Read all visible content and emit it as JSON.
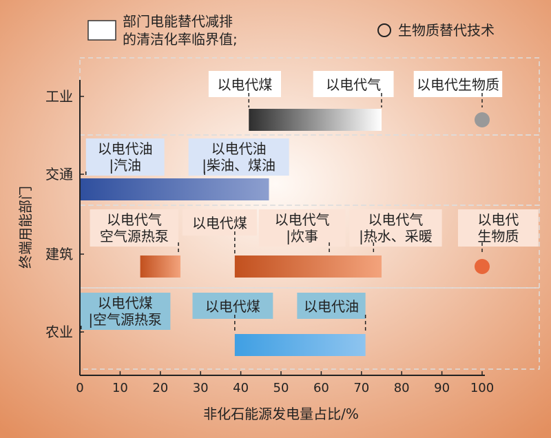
{
  "legend": {
    "box_label_line1": "部门电能替代减排",
    "box_label_line2": "的清洁化率临界值;",
    "circle_label": "生物质替代技术"
  },
  "colors": {
    "bg_center": "#fffaf6",
    "bg_edge": "#e38f5f",
    "industry": "#7a7a7a",
    "industry_light": "#ffffff",
    "industry_dark": "#2e2e2e",
    "transport_dark": "#2f4f9e",
    "transport_light": "#8d9fcf",
    "transport_label_bg": "#d9e4f7",
    "building_dark": "#c2501e",
    "building_light": "#f3a37c",
    "building_label_bg": "#fbe3d6",
    "agri_dark": "#3f9fe3",
    "agri_light": "#8ec4ef",
    "agri_label_bg": "#8ec3d9",
    "white_label_bg": "#ffffff",
    "circle_gray": "#999999",
    "circle_orange": "#e8673a"
  },
  "chart_data": {
    "type": "bar",
    "orientation": "horizontal-range",
    "xlabel": "非化石能源发电量占比/%",
    "ylabel": "终端用能部门",
    "xlim": [
      0,
      100
    ],
    "xticks": [
      0,
      10,
      20,
      30,
      40,
      50,
      60,
      70,
      80,
      90,
      100
    ],
    "categories": [
      "工业",
      "交通",
      "建筑",
      "农业"
    ],
    "bars": [
      {
        "sector": "工业",
        "start": 42,
        "end": 75,
        "color_key": "industry"
      },
      {
        "sector": "交通",
        "start": 0,
        "end": 47,
        "color_key": "transport"
      },
      {
        "sector": "建筑",
        "start": 15,
        "end": 25,
        "color_key": "building"
      },
      {
        "sector": "建筑",
        "start": 38.5,
        "end": 75,
        "color_key": "building"
      },
      {
        "sector": "农业",
        "start": 38.5,
        "end": 71,
        "color_key": "agri"
      }
    ],
    "circles": [
      {
        "sector": "工业",
        "x": 100,
        "color_key": "circle_gray"
      },
      {
        "sector": "建筑",
        "x": 100,
        "color_key": "circle_orange"
      }
    ],
    "annotations": [
      {
        "sector": "工业",
        "lines": [
          "以电代煤"
        ],
        "box_start": 32,
        "box_end": 50,
        "tick_x": 42,
        "style": "white"
      },
      {
        "sector": "工业",
        "lines": [
          "以电代气"
        ],
        "box_start": 58,
        "box_end": 78,
        "tick_x": 75,
        "style": "white"
      },
      {
        "sector": "工业",
        "lines": [
          "以电代生物质"
        ],
        "box_start": 83,
        "box_end": 105,
        "tick_x": 100,
        "style": "white"
      },
      {
        "sector": "交通",
        "lines": [
          "以电代油",
          "|汽油"
        ],
        "box_start": 1.5,
        "box_end": 21,
        "tick_x": 1.5,
        "style": "transport"
      },
      {
        "sector": "交通",
        "lines": [
          "以电代油",
          "|柴油、煤油"
        ],
        "box_start": 27,
        "box_end": 52,
        "tick_x": 31,
        "style": "transport"
      },
      {
        "sector": "建筑",
        "lines": [
          "以电代气",
          "空气源热泵"
        ],
        "box_start": 2.5,
        "box_end": 24.5,
        "tick_x": 24.5,
        "style": "building"
      },
      {
        "sector": "建筑",
        "lines": [
          "以电代煤"
        ],
        "box_start": 25.5,
        "box_end": 44,
        "tick_x": 38.5,
        "style": "building"
      },
      {
        "sector": "建筑",
        "lines": [
          "以电代气",
          "|炊事"
        ],
        "box_start": 44.5,
        "box_end": 66,
        "tick_x": 62,
        "style": "building"
      },
      {
        "sector": "建筑",
        "lines": [
          "以电代气",
          "|热水、采暖"
        ],
        "box_start": 67,
        "box_end": 90,
        "tick_x": 73,
        "style": "building"
      },
      {
        "sector": "建筑",
        "lines": [
          "以电代",
          "生物质"
        ],
        "box_start": 94,
        "box_end": 114,
        "tick_x": 100,
        "style": "building"
      },
      {
        "sector": "农业",
        "lines": [
          "以电代煤",
          "|空气源热泵"
        ],
        "box_start": 0,
        "box_end": 22.5,
        "tick_x": 0.3,
        "style": "agri"
      },
      {
        "sector": "农业",
        "lines": [
          "以电代煤"
        ],
        "box_start": 28,
        "box_end": 48,
        "tick_x": 38.5,
        "style": "agri"
      },
      {
        "sector": "农业",
        "lines": [
          "以电代油"
        ],
        "box_start": 54,
        "box_end": 71,
        "tick_x": 71,
        "style": "agri"
      }
    ]
  }
}
